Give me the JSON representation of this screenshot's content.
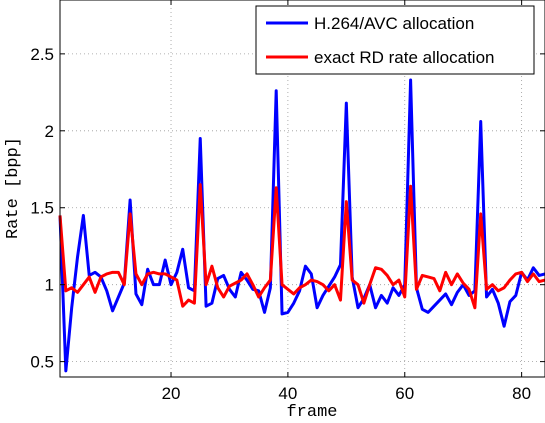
{
  "chart_data": {
    "type": "line",
    "xlabel": "frame",
    "ylabel": "Rate [bpp]",
    "xlim": [
      1,
      84
    ],
    "ylim": [
      0.4,
      2.85
    ],
    "x_ticks": [
      20,
      40,
      60,
      80
    ],
    "y_ticks": [
      0.5,
      1,
      1.5,
      2,
      2.5
    ],
    "y_tick_labels": [
      "0.5",
      "1",
      "1.5",
      "2",
      "2.5"
    ],
    "grid": true,
    "legend_position": "top-right",
    "x_start": 1,
    "series": [
      {
        "name": "H.264/AVC allocation",
        "color": "#0000ff",
        "values": [
          1.45,
          0.44,
          0.85,
          1.18,
          1.45,
          1.06,
          1.08,
          1.05,
          0.96,
          0.83,
          0.92,
          1.01,
          1.55,
          0.94,
          0.87,
          1.1,
          1.0,
          1.0,
          1.16,
          1.0,
          1.08,
          1.23,
          0.98,
          0.96,
          1.95,
          0.86,
          0.88,
          1.04,
          1.06,
          0.97,
          0.92,
          1.08,
          1.03,
          0.97,
          0.96,
          0.82,
          0.98,
          2.26,
          0.81,
          0.82,
          0.88,
          0.96,
          1.12,
          1.07,
          0.85,
          0.93,
          0.99,
          1.05,
          1.13,
          2.18,
          1.05,
          0.85,
          0.91,
          1.0,
          0.85,
          0.93,
          0.88,
          0.98,
          0.93,
          1.0,
          2.33,
          0.98,
          0.84,
          0.82,
          0.86,
          0.9,
          0.94,
          0.87,
          0.95,
          1.0,
          0.93,
          0.96,
          2.06,
          0.92,
          0.97,
          0.88,
          0.73,
          0.89,
          0.93,
          1.08,
          1.03,
          1.11,
          1.06,
          1.07
        ]
      },
      {
        "name": "exact RD rate allocation",
        "color": "#ff0000",
        "values": [
          1.45,
          0.96,
          0.98,
          0.95,
          1.0,
          1.05,
          0.95,
          1.05,
          1.07,
          1.08,
          1.08,
          1.0,
          1.46,
          1.07,
          1.0,
          1.07,
          1.08,
          1.07,
          1.07,
          1.05,
          1.03,
          0.86,
          0.9,
          0.88,
          1.65,
          1.0,
          1.12,
          0.98,
          0.92,
          0.99,
          1.01,
          1.03,
          1.07,
          1.0,
          0.92,
          0.98,
          1.03,
          1.63,
          1.0,
          0.97,
          0.94,
          0.98,
          1.0,
          1.03,
          1.02,
          1.0,
          0.96,
          1.0,
          0.9,
          1.54,
          1.03,
          1.0,
          0.88,
          1.0,
          1.11,
          1.1,
          1.06,
          1.0,
          1.03,
          0.92,
          1.64,
          0.97,
          1.06,
          1.05,
          1.04,
          0.96,
          1.08,
          1.0,
          1.07,
          1.01,
          0.97,
          0.85,
          1.46,
          0.97,
          1.0,
          0.96,
          0.98,
          1.03,
          1.07,
          1.08,
          1.02,
          1.07,
          1.02,
          1.03
        ]
      }
    ]
  }
}
